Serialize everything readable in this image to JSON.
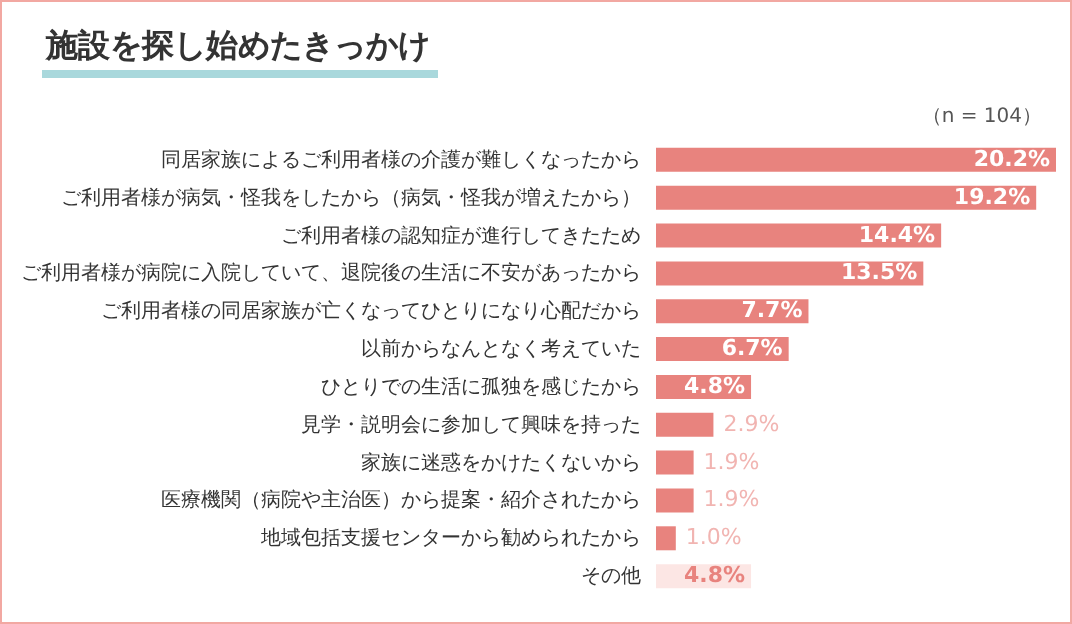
{
  "chart_data": {
    "type": "bar",
    "orientation": "horizontal",
    "title": "施設を探し始めたきっかけ",
    "annotations": [
      "（n = 104）"
    ],
    "categories": [
      "同居家族によるご利用者様の介護が難しくなったから",
      "ご利用者様が病気・怪我をしたから（病気・怪我が増えたから）",
      "ご利用者様の認知症が進行してきたため",
      "ご利用者様が病院に入院していて、退院後の生活に不安があったから",
      "ご利用者様の同居家族が亡くなってひとりになり心配だから",
      "以前からなんとなく考えていた",
      "ひとりでの生活に孤独を感じたから",
      "見学・説明会に参加して興味を持った",
      "家族に迷惑をかけたくないから",
      "医療機関（病院や主治医）から提案・紹介されたから",
      "地域包括支援センターから勧められたから",
      "その他"
    ],
    "values": [
      20.2,
      19.2,
      14.4,
      13.5,
      7.7,
      6.7,
      4.8,
      2.9,
      1.9,
      1.9,
      1.0,
      4.8
    ],
    "value_labels": [
      "20.2%",
      "19.2%",
      "14.4%",
      "13.5%",
      "7.7%",
      "6.7%",
      "4.8%",
      "2.9%",
      "1.9%",
      "1.9%",
      "1.0%",
      "4.8%"
    ],
    "colors": [
      "#e8837e",
      "#e8837e",
      "#e8837e",
      "#e8837e",
      "#e8837e",
      "#e8837e",
      "#e8837e",
      "#e8837e",
      "#e8837e",
      "#e8837e",
      "#e8837e",
      "#fce6e4"
    ]
  }
}
